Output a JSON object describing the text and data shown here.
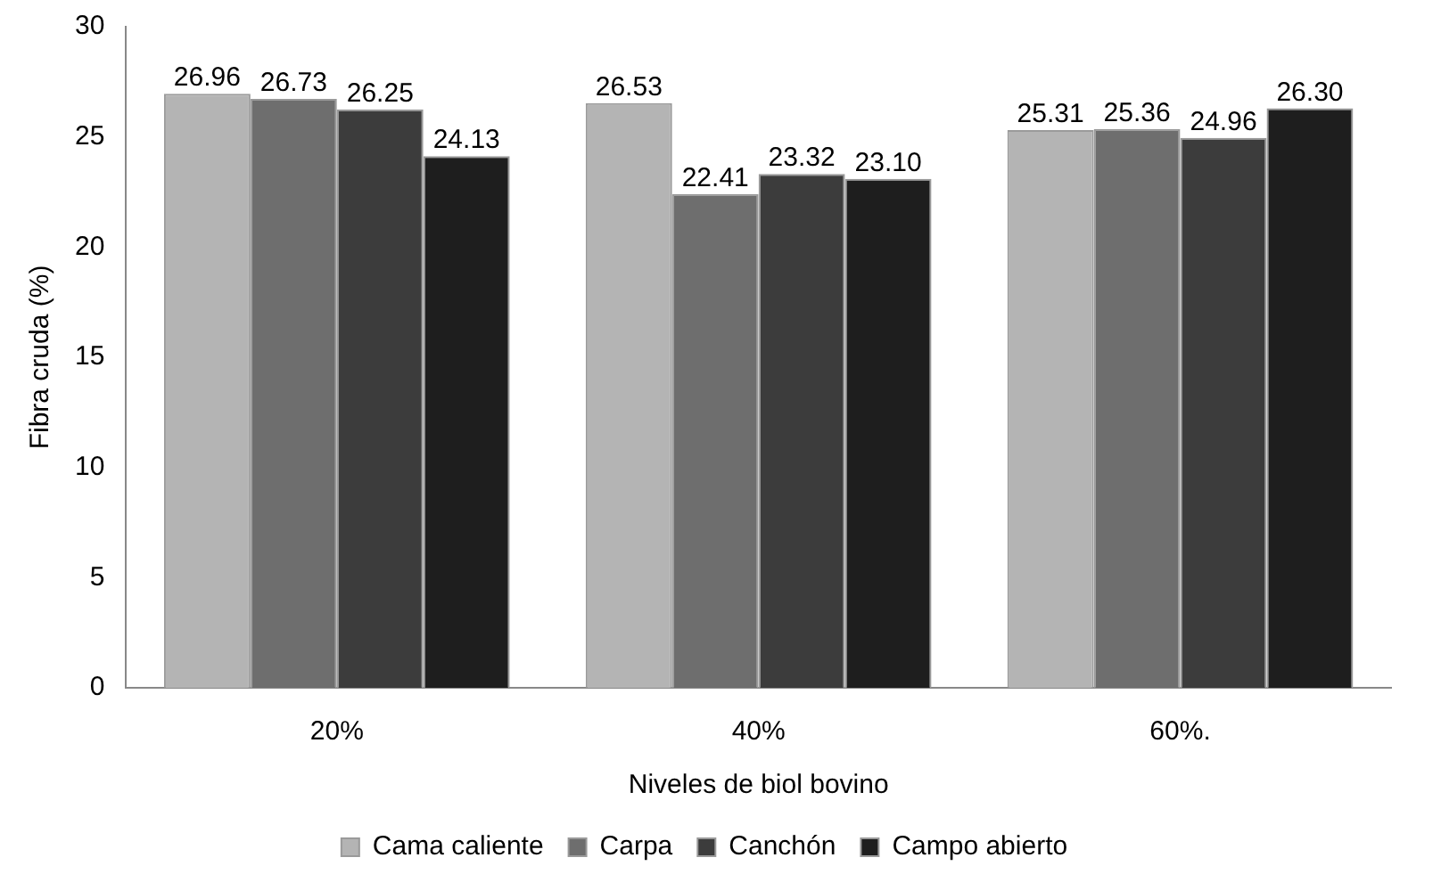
{
  "chart_data": {
    "type": "bar",
    "xlabel": "Niveles de biol bovino",
    "ylabel": "Fibra cruda (%)",
    "categories": [
      "20%",
      "40%",
      "60%."
    ],
    "series": [
      {
        "name": "Cama caliente",
        "color": "#b4b4b4",
        "values": [
          26.96,
          26.53,
          25.31
        ],
        "value_labels": [
          "26.96",
          "26.53",
          "25.31"
        ]
      },
      {
        "name": "Carpa",
        "color": "#6e6e6e",
        "values": [
          26.73,
          22.41,
          25.36
        ],
        "value_labels": [
          "26.73",
          "22.41",
          "25.36"
        ]
      },
      {
        "name": "Canchón",
        "color": "#3c3c3c",
        "values": [
          26.25,
          23.32,
          24.96
        ],
        "value_labels": [
          "26.25",
          "23.32",
          "24.96"
        ]
      },
      {
        "name": "Campo abierto",
        "color": "#1e1e1e",
        "values": [
          24.13,
          23.1,
          26.3
        ],
        "value_labels": [
          "24.13",
          "23.10",
          "26.30"
        ]
      }
    ],
    "ylim": [
      0,
      30
    ],
    "yticks": [
      0,
      5,
      10,
      15,
      20,
      25,
      30
    ],
    "grid": false,
    "legend": "bottom"
  }
}
